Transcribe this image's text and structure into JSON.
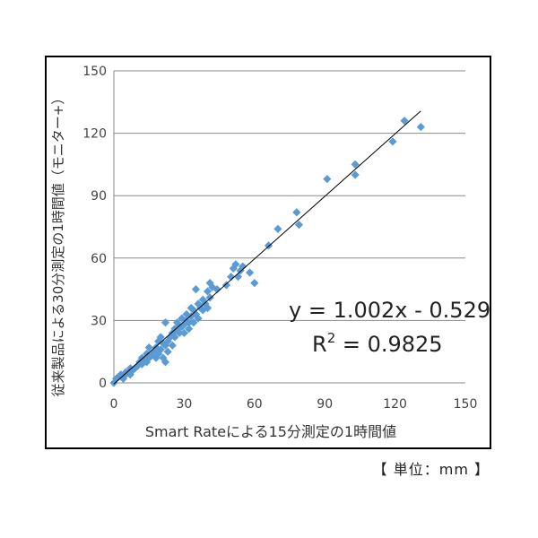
{
  "chart_data": {
    "type": "scatter",
    "xlabel": "Smart Rateによる15分測定の1時間値",
    "ylabel": "従来製品による30分測定の1時間値（モニター+）",
    "xlim": [
      0,
      150
    ],
    "ylim": [
      0,
      150
    ],
    "x_ticks": [
      "0",
      "30",
      "60",
      "90",
      "120",
      "150"
    ],
    "y_ticks": [
      "0",
      "30",
      "60",
      "90",
      "120",
      "150"
    ],
    "grid": "horizontal",
    "marker_color": "#5B9BD5",
    "line_color": "#000000",
    "trendline": {
      "slope": 1.002,
      "intercept": -0.529,
      "x_range": [
        0,
        131
      ]
    },
    "annotations": {
      "equation": "y = 1.002x - 0.529",
      "r2_prefix": "R",
      "r2_sup": "2",
      "r2_value": " = 0.9825"
    },
    "points": [
      [
        0,
        0
      ],
      [
        1,
        2
      ],
      [
        2,
        3
      ],
      [
        3,
        4
      ],
      [
        4,
        2
      ],
      [
        5,
        4
      ],
      [
        5,
        5
      ],
      [
        6,
        5
      ],
      [
        7,
        4
      ],
      [
        7,
        7
      ],
      [
        8,
        6
      ],
      [
        9,
        7
      ],
      [
        10,
        8
      ],
      [
        11,
        10
      ],
      [
        12,
        9
      ],
      [
        12,
        12
      ],
      [
        13,
        11
      ],
      [
        14,
        10
      ],
      [
        14,
        14
      ],
      [
        15,
        12
      ],
      [
        15,
        17
      ],
      [
        16,
        13
      ],
      [
        17,
        15
      ],
      [
        18,
        12
      ],
      [
        18,
        17
      ],
      [
        19,
        14
      ],
      [
        19,
        20
      ],
      [
        20,
        16
      ],
      [
        20,
        22
      ],
      [
        21,
        19
      ],
      [
        21,
        12
      ],
      [
        22,
        10
      ],
      [
        22,
        18
      ],
      [
        22,
        29
      ],
      [
        23,
        20
      ],
      [
        23,
        15
      ],
      [
        24,
        22
      ],
      [
        25,
        24
      ],
      [
        25,
        18
      ],
      [
        26,
        26
      ],
      [
        26,
        22
      ],
      [
        27,
        25
      ],
      [
        27,
        29
      ],
      [
        28,
        27
      ],
      [
        28,
        24
      ],
      [
        29,
        31
      ],
      [
        29,
        27
      ],
      [
        30,
        28
      ],
      [
        30,
        24
      ],
      [
        31,
        33
      ],
      [
        31,
        30
      ],
      [
        32,
        29
      ],
      [
        32,
        26
      ],
      [
        33,
        36
      ],
      [
        33,
        32
      ],
      [
        34,
        35
      ],
      [
        34,
        29
      ],
      [
        35,
        45
      ],
      [
        35,
        33
      ],
      [
        36,
        38
      ],
      [
        36,
        31
      ],
      [
        37,
        36
      ],
      [
        38,
        40
      ],
      [
        38,
        35
      ],
      [
        39,
        38
      ],
      [
        40,
        44
      ],
      [
        40,
        36
      ],
      [
        41,
        48
      ],
      [
        41,
        41
      ],
      [
        42,
        46
      ],
      [
        44,
        45
      ],
      [
        48,
        47
      ],
      [
        50,
        51
      ],
      [
        51,
        55
      ],
      [
        52,
        57
      ],
      [
        53,
        51
      ],
      [
        54,
        54
      ],
      [
        55,
        56
      ],
      [
        58,
        53
      ],
      [
        60,
        48
      ],
      [
        66,
        66
      ],
      [
        70,
        74
      ],
      [
        78,
        82
      ],
      [
        79,
        76
      ],
      [
        91,
        98
      ],
      [
        103,
        100
      ],
      [
        103,
        105
      ],
      [
        119,
        116
      ],
      [
        124,
        126
      ],
      [
        131,
        123
      ]
    ]
  },
  "unit_note": "【 単位：mm 】"
}
